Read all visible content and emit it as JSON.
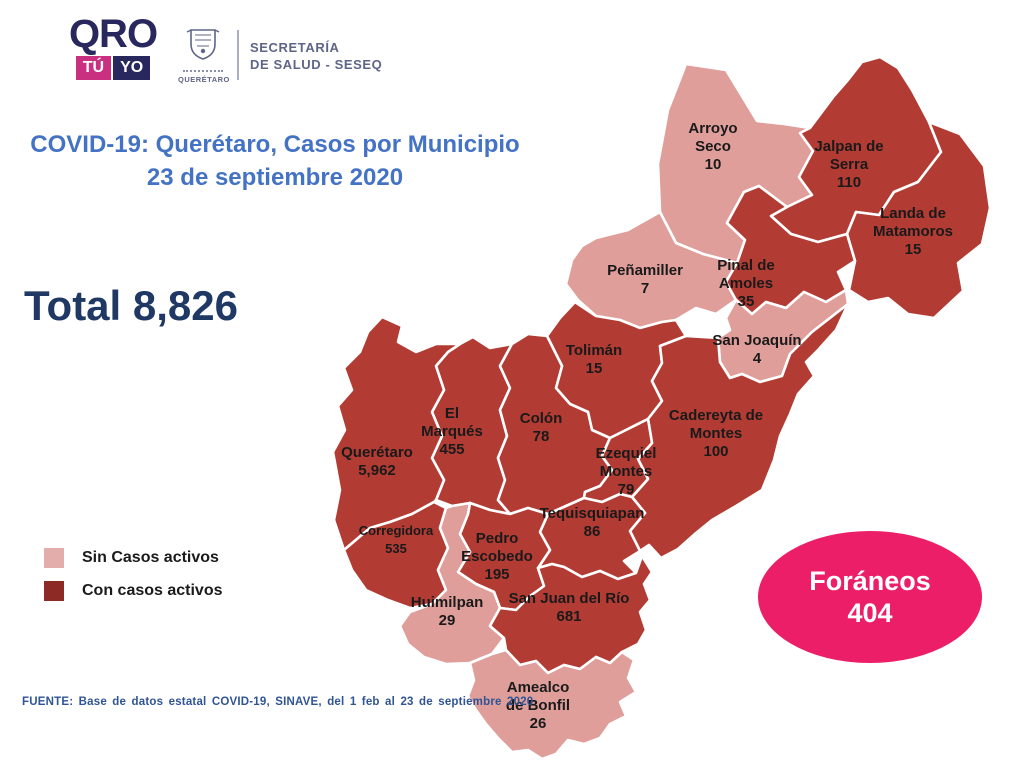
{
  "logo": {
    "brand": {
      "word": "QRO",
      "tu": "TÚ",
      "yo": "YO"
    },
    "crest": {
      "caption": "QUERÉTARO"
    },
    "secretaria": {
      "line1": "SECRETARÍA",
      "line2": "DE SALUD - SESEQ"
    }
  },
  "title": {
    "line1": "COVID-19: Querétaro, Casos por Municipio",
    "line2": "23 de septiembre 2020"
  },
  "total": {
    "text": "Total 8,826"
  },
  "legend": {
    "items": [
      {
        "label": "Sin Casos activos",
        "color": "#E2ADAB",
        "status": "sin"
      },
      {
        "label": "Con casos activos",
        "color": "#8E2A25",
        "status": "con"
      }
    ]
  },
  "foraneos": {
    "label": "Foráneos",
    "value": "404",
    "color": "#EC1E68"
  },
  "source": {
    "text": "FUENTE:  Base de datos estatal COVID-19,  SINAVE,  del 1 feb al 23 de septiembre 2020"
  },
  "map": {
    "colors": {
      "con": "#B23B33",
      "sin": "#DF9E9A",
      "border": "#FFFFFF"
    },
    "municipalities": [
      {
        "id": "arroyo-seco",
        "name": "Arroyo Seco",
        "label_lines": [
          "Arroyo",
          "Seco"
        ],
        "cases": "10",
        "status": "sin"
      },
      {
        "id": "jalpan",
        "name": "Jalpan de Serra",
        "label_lines": [
          "Jalpan de",
          "Serra"
        ],
        "cases": "110",
        "status": "con"
      },
      {
        "id": "landa",
        "name": "Landa de Matamoros",
        "label_lines": [
          "Landa de",
          "Matamoros"
        ],
        "cases": "15",
        "status": "con"
      },
      {
        "id": "penamiller",
        "name": "Peñamiller",
        "label_lines": [
          "Peñamiller"
        ],
        "cases": "7",
        "status": "sin"
      },
      {
        "id": "pinal",
        "name": "Pinal de Amoles",
        "label_lines": [
          "Pinal de",
          "Amoles"
        ],
        "cases": "35",
        "status": "con"
      },
      {
        "id": "san-joaquin",
        "name": "San Joaquín",
        "label_lines": [
          "San Joaquín"
        ],
        "cases": "4",
        "status": "sin"
      },
      {
        "id": "toliman",
        "name": "Tolimán",
        "label_lines": [
          "Tolimán"
        ],
        "cases": "15",
        "status": "con"
      },
      {
        "id": "cadereyta",
        "name": "Cadereyta de Montes",
        "label_lines": [
          "Cadereyta de",
          "Montes"
        ],
        "cases": "100",
        "status": "con"
      },
      {
        "id": "el-marques",
        "name": "El Marqués",
        "label_lines": [
          "El",
          "Marqués"
        ],
        "cases": "455",
        "status": "con"
      },
      {
        "id": "colon",
        "name": "Colón",
        "label_lines": [
          "Colón"
        ],
        "cases": "78",
        "status": "con"
      },
      {
        "id": "queretaro",
        "name": "Querétaro",
        "label_lines": [
          "Querétaro"
        ],
        "cases": "5,962",
        "status": "con"
      },
      {
        "id": "ezequiel",
        "name": "Ezequiel Montes",
        "label_lines": [
          "Ezequiel",
          "Montes"
        ],
        "cases": "79",
        "status": "con"
      },
      {
        "id": "tequisquiapan",
        "name": "Tequisquiapan",
        "label_lines": [
          "Tequisquiapan"
        ],
        "cases": "86",
        "status": "con"
      },
      {
        "id": "corregidora",
        "name": "Corregidora",
        "label_lines": [
          "Corregidora"
        ],
        "cases": "535",
        "status": "con"
      },
      {
        "id": "pedro-escobedo",
        "name": "Pedro Escobedo",
        "label_lines": [
          "Pedro",
          "Escobedo"
        ],
        "cases": "195",
        "status": "con"
      },
      {
        "id": "huimilpan",
        "name": "Huimilpan",
        "label_lines": [
          "Huimilpan"
        ],
        "cases": "29",
        "status": "sin"
      },
      {
        "id": "san-juan-del-rio",
        "name": "San Juan del Río",
        "label_lines": [
          "San Juan del Río"
        ],
        "cases": "681",
        "status": "con"
      },
      {
        "id": "amealco",
        "name": "Amealco de Bonfil",
        "label_lines": [
          "Amealco",
          "de Bonfil"
        ],
        "cases": "26",
        "status": "sin"
      }
    ]
  },
  "chart_data": {
    "type": "choropleth-map",
    "title": "COVID-19: Querétaro, Casos por Municipio — 23 de septiembre 2020",
    "total_cases": 8826,
    "foraneos_cases": 404,
    "legend": [
      "Sin Casos activos",
      "Con casos activos"
    ],
    "categories": [
      "Arroyo Seco",
      "Jalpan de Serra",
      "Landa de Matamoros",
      "Peñamiller",
      "Pinal de Amoles",
      "San Joaquín",
      "Tolimán",
      "Cadereyta de Montes",
      "El Marqués",
      "Colón",
      "Querétaro",
      "Ezequiel Montes",
      "Tequisquiapan",
      "Corregidora",
      "Pedro Escobedo",
      "Huimilpan",
      "San Juan del Río",
      "Amealco de Bonfil"
    ],
    "values": [
      10,
      110,
      15,
      7,
      35,
      4,
      15,
      100,
      455,
      78,
      5962,
      79,
      86,
      535,
      195,
      29,
      681,
      26
    ],
    "status": [
      "sin",
      "con",
      "con",
      "sin",
      "con",
      "sin",
      "con",
      "con",
      "con",
      "con",
      "con",
      "con",
      "con",
      "con",
      "con",
      "sin",
      "con",
      "sin"
    ]
  }
}
